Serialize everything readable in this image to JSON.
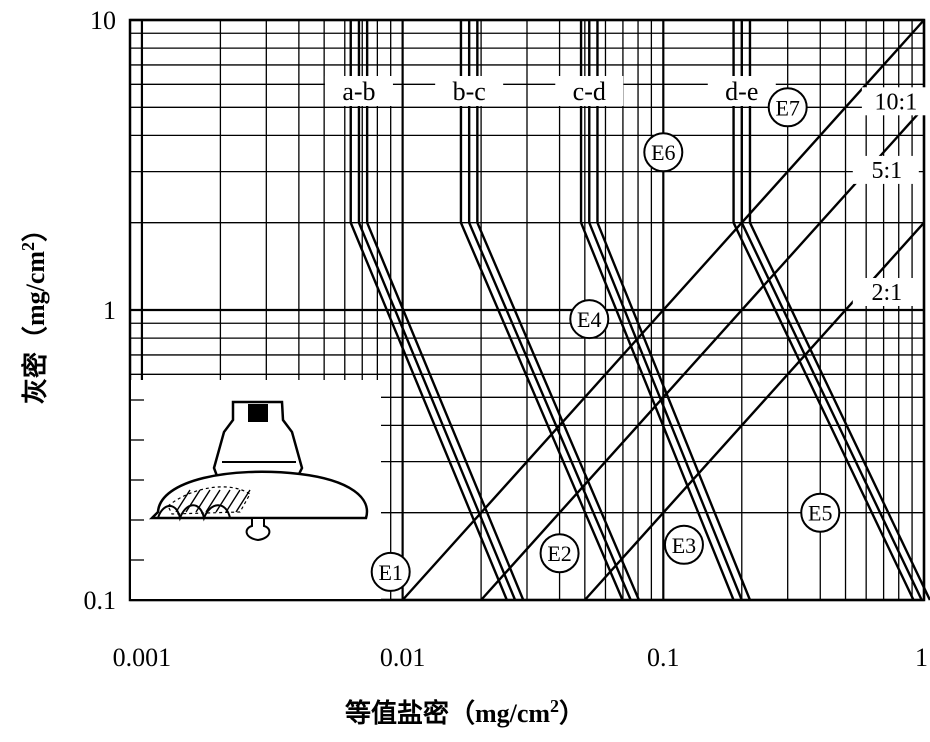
{
  "chart_data": {
    "type": "line",
    "x_scale": "log",
    "y_scale": "log",
    "xlim": [
      0.0009,
      1
    ],
    "ylim": [
      0.1,
      10
    ],
    "grid": true,
    "x_ticks": [
      {
        "value": 0.001,
        "label": "0.001"
      },
      {
        "value": 0.01,
        "label": "0.01"
      },
      {
        "value": 0.1,
        "label": "0.1"
      },
      {
        "value": 1,
        "label": "1"
      }
    ],
    "y_ticks": [
      {
        "value": 0.1,
        "label": "0.1"
      },
      {
        "value": 1,
        "label": "1"
      },
      {
        "value": 10,
        "label": "10"
      }
    ],
    "xlabel_text": "等值盐密（",
    "xlabel_unit": "mg/cm",
    "xlabel_sup": "2",
    "xlabel_close": "）",
    "ylabel_text": "灰密（",
    "ylabel_unit": "mg/cm",
    "ylabel_sup": "2",
    "ylabel_close": "）",
    "boundary_bands": [
      {
        "label": "a-b",
        "upper_x": 0.0068,
        "knee_y": 2.0,
        "bottom_x": 0.027
      },
      {
        "label": "b-c",
        "upper_x": 0.018,
        "knee_y": 2.0,
        "bottom_x": 0.075
      },
      {
        "label": "c-d",
        "upper_x": 0.052,
        "knee_y": 2.0,
        "bottom_x": 0.2
      },
      {
        "label": "d-e",
        "upper_x": 0.2,
        "knee_y": 2.0,
        "bottom_x": 0.98
      }
    ],
    "ratio_lines": [
      {
        "label": "10:1",
        "points": [
          [
            0.01,
            0.1
          ],
          [
            1,
            10
          ]
        ]
      },
      {
        "label": "5:1",
        "points": [
          [
            0.02,
            0.1
          ],
          [
            1,
            5
          ]
        ]
      },
      {
        "label": "2:1",
        "points": [
          [
            0.05,
            0.1
          ],
          [
            1,
            2
          ]
        ]
      }
    ],
    "zones": [
      {
        "label": "E1",
        "x": 0.009,
        "y": 0.125
      },
      {
        "label": "E2",
        "x": 0.04,
        "y": 0.145
      },
      {
        "label": "E3",
        "x": 0.12,
        "y": 0.155
      },
      {
        "label": "E4",
        "x": 0.052,
        "y": 0.93
      },
      {
        "label": "E5",
        "x": 0.4,
        "y": 0.2
      },
      {
        "label": "E6",
        "x": 0.1,
        "y": 3.5
      },
      {
        "label": "E7",
        "x": 0.3,
        "y": 5.0
      }
    ]
  }
}
